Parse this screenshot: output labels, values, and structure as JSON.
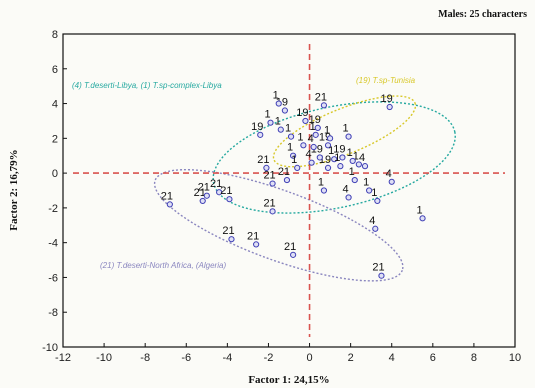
{
  "chart_data": {
    "type": "scatter",
    "title": "Males: 25 characters",
    "xlabel": "Factor 1: 24,15%",
    "ylabel": "Factor 2: 16,79%",
    "xlim": [
      -12,
      10
    ],
    "ylim": [
      -10,
      8
    ],
    "xticks": [
      -12,
      -10,
      -8,
      -6,
      -4,
      -2,
      0,
      2,
      4,
      6,
      8,
      10
    ],
    "yticks": [
      -10,
      -8,
      -6,
      -4,
      -2,
      0,
      2,
      4,
      6,
      8
    ],
    "colors": {
      "points": "#3f3fb5",
      "libya_ellipse": "#26a9a0",
      "tunisia_ellipse": "#d8c82a",
      "algeria_ellipse": "#8a86bf",
      "cross": "#d9534f",
      "frame": "#111111"
    },
    "group_labels": [
      {
        "group": "libya",
        "text": "(4) T.deserti-Libya, (1) T.sp-complex-Libya"
      },
      {
        "group": "tunisia",
        "text": "(19) T.sp-Tunisia"
      },
      {
        "group": "algeria",
        "text": "(21) T.deserti-North Africa, (Algeria)"
      }
    ],
    "points": [
      {
        "x": -6.8,
        "y": -1.8,
        "label": "21"
      },
      {
        "x": -5.2,
        "y": -1.6,
        "label": "21"
      },
      {
        "x": -5.0,
        "y": -1.3,
        "label": "21"
      },
      {
        "x": -4.4,
        "y": -1.1,
        "label": "21"
      },
      {
        "x": -3.9,
        "y": -1.5,
        "label": "21"
      },
      {
        "x": -3.8,
        "y": -3.8,
        "label": "21"
      },
      {
        "x": -2.6,
        "y": -4.1,
        "label": "21"
      },
      {
        "x": -1.8,
        "y": -2.2,
        "label": "21"
      },
      {
        "x": -0.8,
        "y": -4.7,
        "label": "21"
      },
      {
        "x": -2.1,
        "y": 0.3,
        "label": "21"
      },
      {
        "x": -1.8,
        "y": -0.6,
        "label": "21"
      },
      {
        "x": -1.1,
        "y": -0.4,
        "label": "21"
      },
      {
        "x": -2.4,
        "y": 2.2,
        "label": "19"
      },
      {
        "x": -1.2,
        "y": 3.6,
        "label": "19"
      },
      {
        "x": -0.2,
        "y": 3.0,
        "label": "19"
      },
      {
        "x": 0.4,
        "y": 2.6,
        "label": "19"
      },
      {
        "x": 0.9,
        "y": 1.6,
        "label": "19"
      },
      {
        "x": 1.6,
        "y": 0.9,
        "label": "19"
      },
      {
        "x": 0.9,
        "y": 0.3,
        "label": "19"
      },
      {
        "x": 3.9,
        "y": 3.8,
        "label": "19"
      },
      {
        "x": 0.7,
        "y": 3.9,
        "label": "21"
      },
      {
        "x": -1.5,
        "y": 4.0,
        "label": "1"
      },
      {
        "x": -1.9,
        "y": 2.9,
        "label": "1"
      },
      {
        "x": -1.4,
        "y": 2.5,
        "label": "1"
      },
      {
        "x": -0.9,
        "y": 2.1,
        "label": "1"
      },
      {
        "x": -0.8,
        "y": 1.0,
        "label": "1"
      },
      {
        "x": -0.6,
        "y": 0.3,
        "label": "1"
      },
      {
        "x": 0.3,
        "y": 2.2,
        "label": "1"
      },
      {
        "x": 1.0,
        "y": 2.0,
        "label": "1"
      },
      {
        "x": 1.9,
        "y": 2.1,
        "label": "1"
      },
      {
        "x": 2.4,
        "y": 0.5,
        "label": "1"
      },
      {
        "x": 0.7,
        "y": -1.0,
        "label": "1"
      },
      {
        "x": 2.2,
        "y": -0.4,
        "label": "1"
      },
      {
        "x": 2.9,
        "y": -1.0,
        "label": "1"
      },
      {
        "x": 3.3,
        "y": -1.6,
        "label": "1"
      },
      {
        "x": 5.5,
        "y": -2.6,
        "label": "1"
      },
      {
        "x": 1.9,
        "y": -1.4,
        "label": "4"
      },
      {
        "x": 3.2,
        "y": -3.2,
        "label": "4"
      },
      {
        "x": 4.0,
        "y": -0.5,
        "label": "4"
      },
      {
        "x": 2.7,
        "y": 0.4,
        "label": "4"
      },
      {
        "x": 0.1,
        "y": 0.6,
        "label": "4"
      },
      {
        "x": 3.5,
        "y": -5.9,
        "label": "21"
      },
      {
        "x": 1.2,
        "y": 0.8,
        "label": "1"
      },
      {
        "x": 1.5,
        "y": 0.4,
        "label": "1"
      },
      {
        "x": 2.1,
        "y": 0.7,
        "label": "1"
      },
      {
        "x": 0.5,
        "y": 0.9,
        "label": "19"
      },
      {
        "x": -0.3,
        "y": 1.6,
        "label": "1"
      },
      {
        "x": 0.2,
        "y": 1.5,
        "label": "4"
      }
    ],
    "ellipses": [
      {
        "group": "libya",
        "cx": 1.2,
        "cy": 0.9,
        "rx": 6.0,
        "ry": 2.9,
        "angle": 12
      },
      {
        "group": "tunisia",
        "cx": 1.7,
        "cy": 2.4,
        "rx": 3.7,
        "ry": 1.3,
        "angle": 22
      },
      {
        "group": "algeria",
        "cx": -1.5,
        "cy": -3.0,
        "rx": 6.4,
        "ry": 2.0,
        "angle": -20
      }
    ]
  }
}
